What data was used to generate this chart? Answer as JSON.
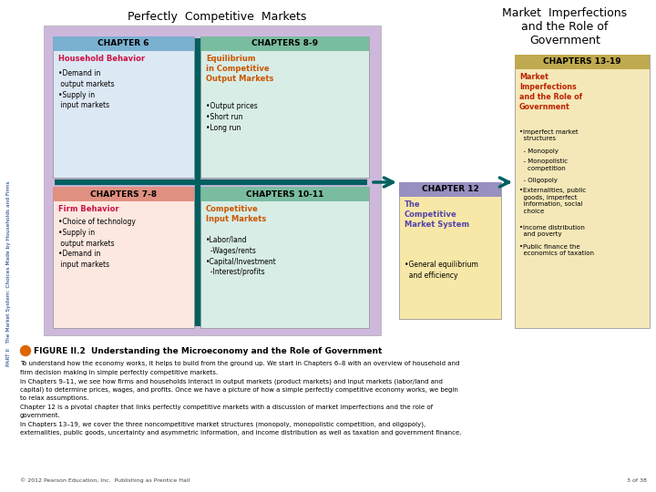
{
  "bg_color": "#ffffff",
  "title_left": "Perfectly  Competitive  Markets",
  "title_right": "Market  Imperfections\nand the Role of\nGovernment",
  "large_bg_color": "#cdb8dc",
  "ch6_header_bg": "#7ab0d0",
  "ch6_title_color": "#cc1144",
  "ch6_box_bg": "#dce8f4",
  "ch89_header_bg": "#7abca0",
  "ch89_title_color": "#cc5500",
  "ch89_box_bg": "#d8ede6",
  "ch78_header_bg": "#e09080",
  "ch78_title_color": "#cc1144",
  "ch78_box_bg": "#fce8e0",
  "ch1011_header_bg": "#7abca0",
  "ch1011_title_color": "#cc5500",
  "ch1011_box_bg": "#d8ede6",
  "ch12_header_bg": "#9890c0",
  "ch12_box_bg": "#f8e8a8",
  "ch12_title_color": "#5544aa",
  "ch1319_header_bg": "#c0aa50",
  "ch1319_box_bg": "#f5e8b8",
  "ch1319_title_color": "#bb2200",
  "arrow_color": "#006060",
  "cross_color": "#006060",
  "sidebar_color": "#003388",
  "figure_dot_color": "#dd6600",
  "copyright": "© 2012 Pearson Education, Inc.  Publishing as Prentice Hall",
  "page_num": "3 of 38"
}
